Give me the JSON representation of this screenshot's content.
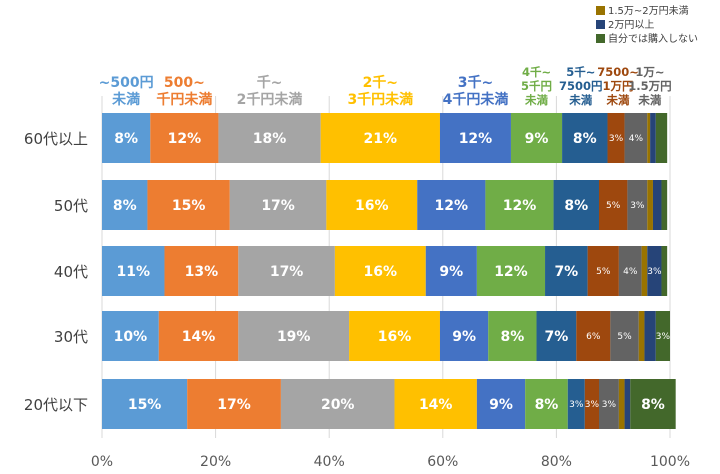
{
  "chart_data": {
    "type": "bar",
    "orientation": "horizontal",
    "stacked": true,
    "percent": true,
    "title": "",
    "xlabel": "",
    "ylabel": "",
    "xlim": [
      0,
      100
    ],
    "x_ticks": [
      "0%",
      "20%",
      "40%",
      "60%",
      "80%",
      "100%"
    ],
    "grid": true,
    "categories": [
      "60代以上",
      "50代",
      "40代",
      "30代",
      "20代以下"
    ],
    "legend_position": "top-right",
    "series": [
      {
        "name": "~500円未満",
        "label_lines": [
          "~500円",
          "未満"
        ],
        "color": "#5b9bd5",
        "label_color": "#5b9bd5",
        "values": [
          8.5,
          8,
          11,
          10,
          15
        ],
        "data_labels": [
          "8%",
          "8%",
          "11%",
          "10%",
          "15%"
        ]
      },
      {
        "name": "500~千円未満",
        "label_lines": [
          "500~",
          "千円未満"
        ],
        "color": "#ed7d31",
        "label_color": "#ed7d31",
        "values": [
          12,
          14.5,
          13,
          14,
          16.5
        ],
        "data_labels": [
          "12%",
          "15%",
          "13%",
          "14%",
          "17%"
        ]
      },
      {
        "name": "千~2千円未満",
        "label_lines": [
          "千~",
          "2千円未満"
        ],
        "color": "#a5a5a5",
        "label_color": "#a5a5a5",
        "values": [
          18,
          17,
          17,
          19.5,
          20
        ],
        "data_labels": [
          "18%",
          "17%",
          "17%",
          "19%",
          "20%"
        ]
      },
      {
        "name": "2千~3千円未満",
        "label_lines": [
          "2千~",
          "3千円未満"
        ],
        "color": "#ffc000",
        "label_color": "#ffc000",
        "values": [
          21,
          16,
          16,
          16,
          14.5
        ],
        "data_labels": [
          "21%",
          "16%",
          "16%",
          "16%",
          "14%"
        ]
      },
      {
        "name": "3千~4千円未満",
        "label_lines": [
          "3千~",
          "4千円未満"
        ],
        "color": "#4472c4",
        "label_color": "#4472c4",
        "values": [
          12.5,
          12,
          9,
          8.5,
          8.5
        ],
        "data_labels": [
          "12%",
          "12%",
          "9%",
          "9%",
          "9%"
        ]
      },
      {
        "name": "4千~5千円未満",
        "label_lines": [
          "4千~",
          "5千円",
          "未満"
        ],
        "color": "#70ad47",
        "label_color": "#70ad47",
        "values": [
          9,
          12,
          12,
          8.5,
          7.5
        ],
        "data_labels": [
          "9%",
          "12%",
          "12%",
          "8%",
          "8%"
        ]
      },
      {
        "name": "5千~7500円未満",
        "label_lines": [
          "5千~",
          "7500円",
          "未満"
        ],
        "color": "#255e91",
        "label_color": "#255e91",
        "values": [
          8,
          8,
          7.5,
          7,
          3
        ],
        "data_labels": [
          "8%",
          "8%",
          "7%",
          "7%",
          "3%"
        ]
      },
      {
        "name": "7500~1万円未満",
        "label_lines": [
          "7500~",
          "1万円",
          "未満"
        ],
        "color": "#9e480e",
        "label_color": "#9e480e",
        "values": [
          3,
          5,
          5.5,
          6,
          2.5
        ],
        "data_labels": [
          "3%",
          "5%",
          "5%",
          "6%",
          "3%"
        ]
      },
      {
        "name": "1万~1.5万円未満",
        "label_lines": [
          "1万~",
          "1.5万円",
          "未満"
        ],
        "color": "#636363",
        "label_color": "#636363",
        "values": [
          4,
          3.5,
          4,
          5,
          3.5
        ],
        "data_labels": [
          "4%",
          "3%",
          "4%",
          "5%",
          "3%"
        ]
      },
      {
        "name": "1.5万~2万円未満",
        "color": "#997300",
        "values": [
          0.5,
          1,
          1,
          1,
          1
        ],
        "data_labels": [
          "",
          "",
          "",
          "",
          ""
        ]
      },
      {
        "name": "2万円以上",
        "color": "#264478",
        "values": [
          1,
          1.5,
          2.5,
          2,
          1
        ],
        "data_labels": [
          "",
          "",
          "3%",
          "",
          ""
        ]
      },
      {
        "name": "自分では購入しない",
        "color": "#43682b",
        "values": [
          2,
          1,
          1,
          2.5,
          8
        ],
        "data_labels": [
          "",
          "",
          "",
          "3%",
          "8%"
        ]
      }
    ]
  }
}
